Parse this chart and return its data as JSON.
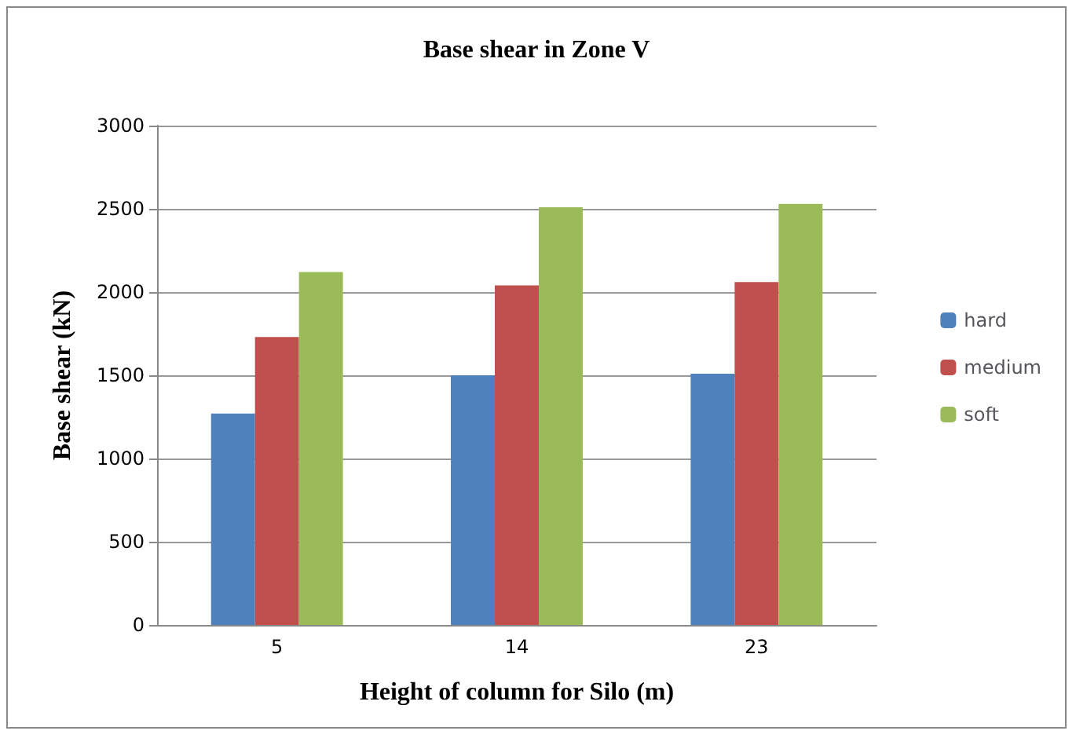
{
  "chart_data": {
    "type": "bar",
    "title": "Base shear in Zone V",
    "xlabel": "Height of column for Silo (m)",
    "ylabel": "Base shear (kN)",
    "categories": [
      "5",
      "14",
      "23"
    ],
    "series": [
      {
        "name": "hard",
        "color": "#4f81bd",
        "values": [
          1270,
          1500,
          1510
        ]
      },
      {
        "name": "medium",
        "color": "#c0504d",
        "values": [
          1730,
          2040,
          2060
        ]
      },
      {
        "name": "soft",
        "color": "#9bbb59",
        "values": [
          2120,
          2510,
          2530
        ]
      }
    ],
    "ylim": [
      0,
      3000
    ],
    "yticks": [
      0,
      500,
      1000,
      1500,
      2000,
      2500,
      3000
    ],
    "grid": "y",
    "legend": "right"
  }
}
